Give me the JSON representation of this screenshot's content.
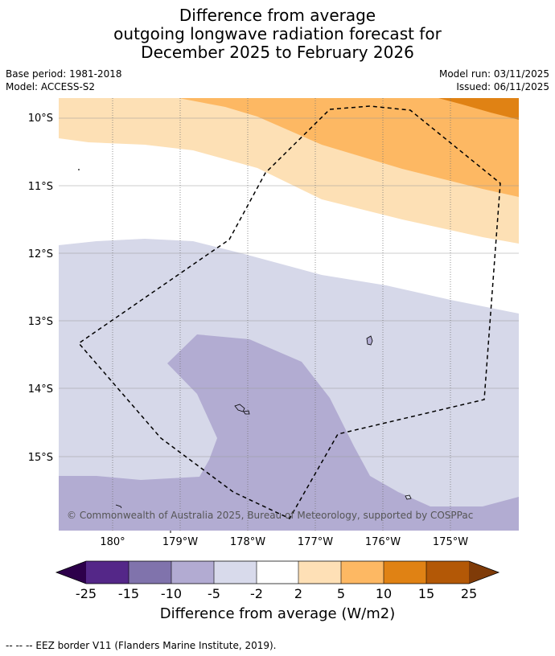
{
  "title": {
    "line1": "Difference from average",
    "line2": "outgoing longwave radiation forecast for",
    "line3": "December 2025 to February 2026"
  },
  "meta": {
    "base_period": "Base period: 1981-2018",
    "model": "Model: ACCESS-S2",
    "model_run": "Model run: 03/11/2025",
    "issued": "Issued: 06/11/2025"
  },
  "map": {
    "lat_labels": [
      "10°S",
      "11°S",
      "12°S",
      "13°S",
      "14°S",
      "15°S"
    ],
    "lon_labels": [
      "180°",
      "179°W",
      "178°W",
      "177°W",
      "176°W",
      "175°W"
    ],
    "copyright": "© Commonwealth of Australia 2025, Bureau of Meteorology, supported by COSPPac",
    "colors": {
      "neg5_neg2": "#d6d8e9",
      "neg10_neg5": "#b2acd2",
      "pos2_pos5": "#fde0b5",
      "pos5_pos10": "#fdb863",
      "pos10_pos15": "#e08214",
      "grid": "#999999",
      "eez": "#000000"
    }
  },
  "colorbar": {
    "ticks": [
      "-25",
      "-15",
      "-10",
      "-5",
      "-2",
      "2",
      "5",
      "10",
      "15",
      "25"
    ],
    "colors": [
      "#2d004b",
      "#542788",
      "#8073ac",
      "#b2abd2",
      "#d8daeb",
      "#ffffff",
      "#fee0b6",
      "#fdb863",
      "#e08214",
      "#b35806",
      "#7f3b08"
    ],
    "label": "Difference from average (W/m2)"
  },
  "footer": {
    "legend": "--  --  -- EEZ border V11 (Flanders Marine Institute, 2019)."
  }
}
